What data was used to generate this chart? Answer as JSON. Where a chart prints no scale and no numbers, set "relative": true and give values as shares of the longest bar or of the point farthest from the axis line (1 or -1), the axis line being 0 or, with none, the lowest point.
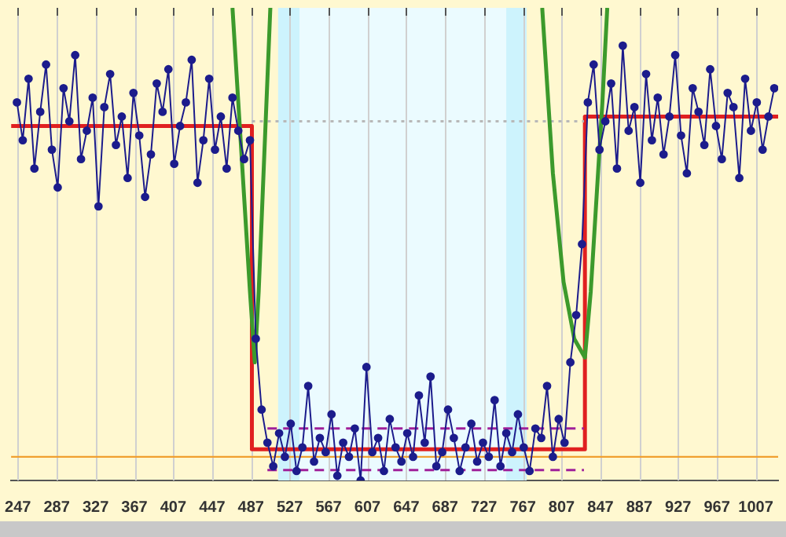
{
  "chart_data": {
    "type": "line",
    "relative": true,
    "xlim": [
      240,
      1030
    ],
    "xticks": [
      247,
      287,
      327,
      367,
      407,
      447,
      487,
      527,
      567,
      607,
      647,
      687,
      727,
      767,
      807,
      847,
      887,
      927,
      967,
      1007
    ],
    "grid": "x",
    "legend": false,
    "tick_labels": "x",
    "bands": [
      {
        "axis": "x",
        "from": 515,
        "to": 771,
        "color": "#cdf3fd"
      },
      {
        "axis": "x",
        "from": 537,
        "to": 750,
        "color": "#ebfbff"
      }
    ],
    "ref_lines": [
      {
        "axis": "y",
        "value": 0.05,
        "color": "#f0a030",
        "line_style": "solid"
      }
    ],
    "series": [
      {
        "color": "#1c1c8c",
        "marker": "circle",
        "line_style": "solid",
        "x": [
          246,
          252,
          258,
          264,
          270,
          276,
          282,
          288,
          294,
          300,
          306,
          312,
          318,
          324,
          330,
          336,
          342,
          348,
          354,
          360,
          366,
          372,
          378,
          384,
          390,
          396,
          402,
          408,
          414,
          420,
          426,
          432,
          438,
          444,
          450,
          456,
          462,
          468,
          474,
          480,
          486,
          492,
          498,
          504,
          510,
          516,
          522,
          528,
          534,
          540,
          546,
          552,
          558,
          564,
          570,
          576,
          582,
          588,
          594,
          600,
          606,
          612,
          618,
          624,
          630,
          636,
          642,
          648,
          654,
          660,
          666,
          672,
          678,
          684,
          690,
          696,
          702,
          708,
          714,
          720,
          726,
          732,
          738,
          744,
          750,
          756,
          762,
          768,
          774,
          780,
          786,
          792,
          798,
          804,
          810,
          816,
          822,
          828,
          834,
          840,
          846,
          852,
          858,
          864,
          870,
          876,
          882,
          888,
          894,
          900,
          906,
          912,
          918,
          924,
          930,
          936,
          942,
          948,
          954,
          960,
          966,
          972,
          978,
          984,
          990,
          996,
          1002,
          1008,
          1014,
          1020,
          1026
        ],
        "values": [
          0.8,
          0.72,
          0.85,
          0.66,
          0.78,
          0.88,
          0.7,
          0.62,
          0.83,
          0.76,
          0.9,
          0.68,
          0.74,
          0.81,
          0.58,
          0.79,
          0.86,
          0.71,
          0.77,
          0.64,
          0.82,
          0.73,
          0.6,
          0.69,
          0.84,
          0.78,
          0.87,
          0.67,
          0.75,
          0.8,
          0.89,
          0.63,
          0.72,
          0.85,
          0.7,
          0.77,
          0.66,
          0.81,
          0.74,
          0.68,
          0.72,
          0.3,
          0.15,
          0.08,
          0.03,
          0.1,
          0.05,
          0.12,
          0.02,
          0.07,
          0.2,
          0.04,
          0.09,
          0.06,
          0.14,
          0.01,
          0.08,
          0.05,
          0.11,
          0.0,
          0.24,
          0.06,
          0.09,
          0.02,
          0.13,
          0.07,
          0.04,
          0.1,
          0.05,
          0.18,
          0.08,
          0.22,
          0.03,
          0.06,
          0.15,
          0.09,
          0.02,
          0.07,
          0.12,
          0.04,
          0.08,
          0.05,
          0.17,
          0.03,
          0.1,
          0.06,
          0.14,
          0.07,
          0.02,
          0.11,
          0.09,
          0.2,
          0.05,
          0.13,
          0.08,
          0.25,
          0.35,
          0.5,
          0.8,
          0.88,
          0.7,
          0.76,
          0.84,
          0.66,
          0.92,
          0.74,
          0.79,
          0.63,
          0.86,
          0.72,
          0.81,
          0.69,
          0.77,
          0.9,
          0.73,
          0.65,
          0.83,
          0.78,
          0.71,
          0.87,
          0.75,
          0.68,
          0.82,
          0.79,
          0.64,
          0.85,
          0.74,
          0.8,
          0.7,
          0.77,
          0.83
        ]
      },
      {
        "color": "#3c9a2c",
        "marker": "none",
        "line_style": "solid",
        "x": [
          468,
          474,
          480,
          486,
          491,
          495,
          499,
          503,
          507,
          650,
          787,
          798,
          809,
          820,
          831,
          837,
          843,
          849,
          854
        ],
        "values": [
          1,
          0.8,
          0.6,
          0.4,
          0.25,
          0.4,
          0.6,
          0.8,
          1,
          null,
          1,
          0.65,
          0.42,
          0.3,
          0.26,
          0.4,
          0.6,
          0.8,
          1
        ]
      },
      {
        "color": "#b8b8b8",
        "marker": "none",
        "line_style": "dotted",
        "x": [
          488,
          830
        ],
        "values": [
          0.76,
          0.76
        ]
      },
      {
        "color": "#a0209a",
        "marker": "none",
        "line_style": "dashed",
        "x": [
          504,
          830
        ],
        "values": [
          0.11,
          0.11
        ]
      },
      {
        "color": "#a0209a",
        "marker": "none",
        "line_style": "dashed",
        "x": [
          504,
          830
        ],
        "values": [
          0.022,
          0.022
        ]
      },
      {
        "color": "#e02020",
        "marker": "none",
        "line_style": "solid",
        "x": [
          240,
          488,
          488,
          831,
          831,
          1030
        ],
        "values": [
          0.75,
          0.75,
          0.066,
          0.066,
          0.77,
          0.77
        ]
      }
    ]
  }
}
